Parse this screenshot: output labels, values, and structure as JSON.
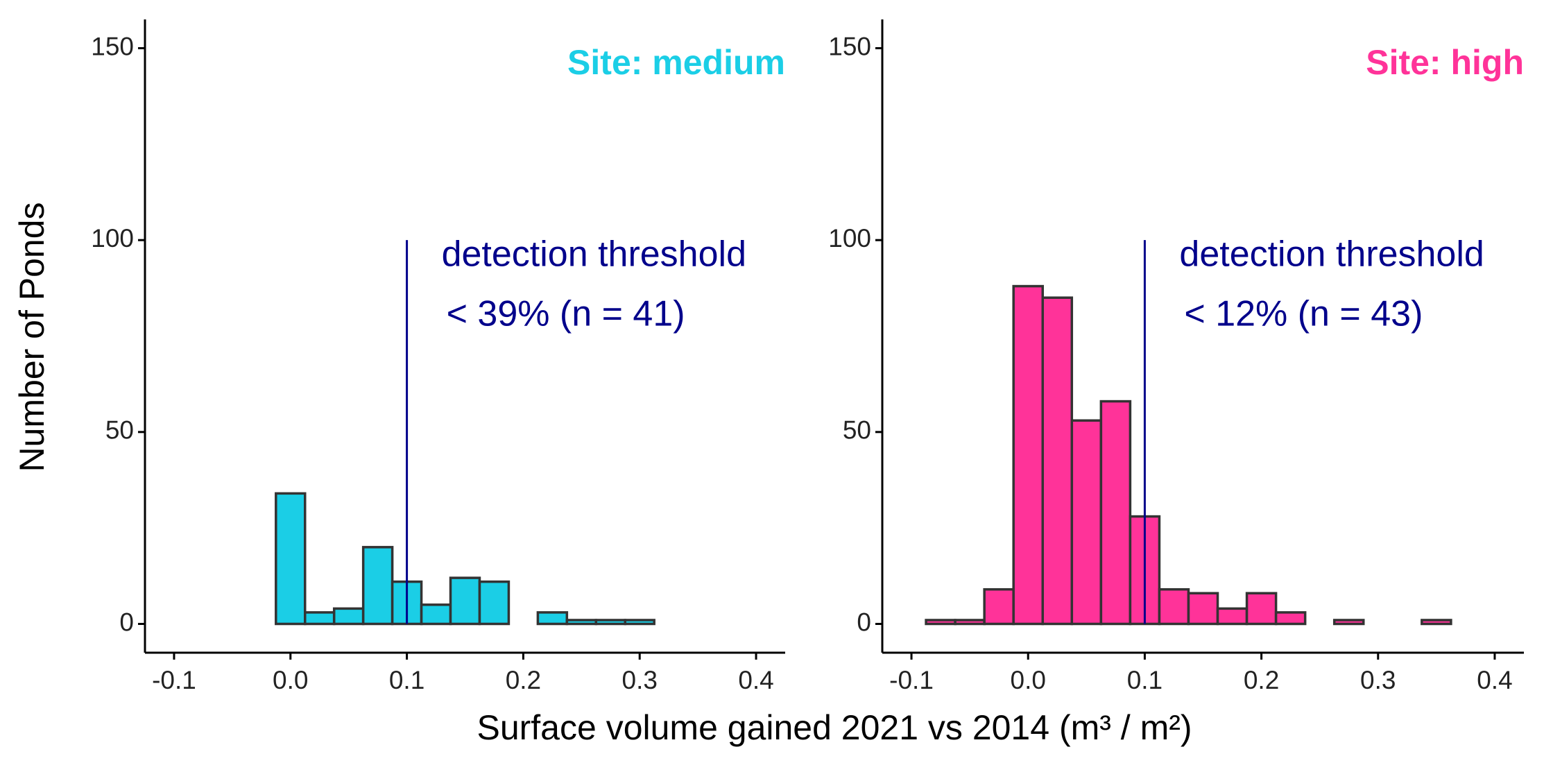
{
  "chart_data": [
    {
      "type": "histogram",
      "title": "Site: medium",
      "color": "#1BCEE6",
      "edgecolor": "#333333",
      "bins": [
        -0.0875,
        -0.0625,
        -0.0375,
        -0.0125,
        0.0125,
        0.0375,
        0.0625,
        0.0875,
        0.1125,
        0.1375,
        0.1625,
        0.1875,
        0.2125,
        0.2375,
        0.2625,
        0.2875,
        0.3125,
        0.3375,
        0.3625,
        0.3875
      ],
      "values": [
        0,
        0,
        0,
        34,
        3,
        4,
        20,
        11,
        5,
        12,
        11,
        0,
        3,
        1,
        1,
        1,
        0,
        0,
        0
      ],
      "xlim": [
        -0.125,
        0.425
      ],
      "ylim": [
        -7.5,
        157.5
      ],
      "xticks": [
        -0.1,
        {
          "value": 0,
          "label": "0.0"
        },
        0.1,
        0.2,
        0.3,
        0.4
      ],
      "yticks": [
        0,
        50,
        100,
        150
      ],
      "threshold": {
        "x": 0.1,
        "y": [
          0,
          100
        ],
        "color": "#00008B"
      },
      "annotations": [
        "detection threshold",
        "< 39% (n = 41)"
      ]
    },
    {
      "type": "histogram",
      "title": "Site: high",
      "color": "#FF3399",
      "edgecolor": "#333333",
      "bins": [
        -0.0875,
        -0.0625,
        -0.0375,
        -0.0125,
        0.0125,
        0.0375,
        0.0625,
        0.0875,
        0.1125,
        0.1375,
        0.1625,
        0.1875,
        0.2125,
        0.2375,
        0.2625,
        0.2875,
        0.3125,
        0.3375,
        0.3625,
        0.3875
      ],
      "values": [
        1,
        1,
        9,
        88,
        85,
        53,
        58,
        28,
        9,
        8,
        4,
        8,
        3,
        0,
        1,
        0,
        0,
        1,
        0
      ],
      "xlim": [
        -0.125,
        0.425
      ],
      "ylim": [
        -7.5,
        157.5
      ],
      "xticks": [
        -0.1,
        {
          "value": 0,
          "label": "0.0"
        },
        0.1,
        0.2,
        0.3,
        0.4
      ],
      "yticks": [
        0,
        50,
        100,
        150
      ],
      "threshold": {
        "x": 0.1,
        "y": [
          0,
          100
        ],
        "color": "#00008B"
      },
      "annotations": [
        "detection threshold",
        "< 12% (n = 43)"
      ]
    }
  ],
  "xlabel": "Surface volume gained 2021 vs 2014 (m³ / m²)",
  "ylabel": "Number of Ponds"
}
